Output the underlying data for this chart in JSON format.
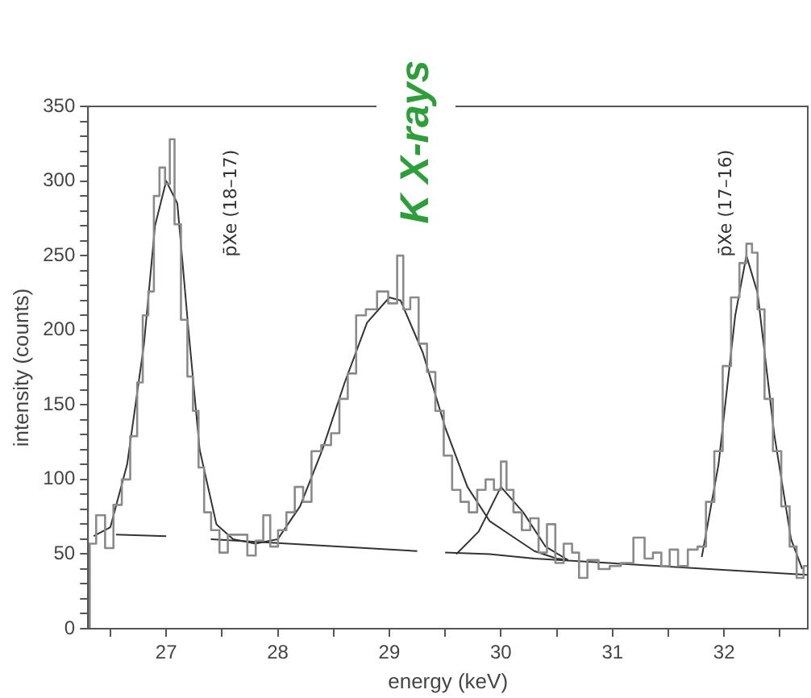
{
  "chart_data": {
    "type": "step",
    "title": "K X-rays",
    "xlabel": "energy (keV)",
    "ylabel": "intensity (counts)",
    "xlim": [
      26.3,
      32.75
    ],
    "ylim": [
      0,
      350
    ],
    "xticks": [
      {
        "value": 26.5,
        "label": null
      },
      27,
      {
        "value": 27.5,
        "label": null
      },
      28,
      {
        "value": 28.5,
        "label": null
      },
      29,
      {
        "value": 29.5,
        "label": null
      },
      30,
      {
        "value": 30.5,
        "label": null
      },
      31,
      {
        "value": 31.5,
        "label": null
      },
      32,
      {
        "value": 32.5,
        "label": null
      }
    ],
    "yticks": [
      0,
      {
        "value": 10,
        "label": null
      },
      {
        "value": 20,
        "label": null
      },
      {
        "value": 30,
        "label": null
      },
      {
        "value": 40,
        "label": null
      },
      50,
      {
        "value": 60,
        "label": null
      },
      {
        "value": 70,
        "label": null
      },
      {
        "value": 80,
        "label": null
      },
      {
        "value": 90,
        "label": null
      },
      100,
      {
        "value": 110,
        "label": null
      },
      {
        "value": 120,
        "label": null
      },
      {
        "value": 130,
        "label": null
      },
      {
        "value": 140,
        "label": null
      },
      150,
      {
        "value": 160,
        "label": null
      },
      {
        "value": 170,
        "label": null
      },
      {
        "value": 180,
        "label": null
      },
      {
        "value": 190,
        "label": null
      },
      200,
      {
        "value": 210,
        "label": null
      },
      {
        "value": 220,
        "label": null
      },
      {
        "value": 230,
        "label": null
      },
      {
        "value": 240,
        "label": null
      },
      250,
      {
        "value": 260,
        "label": null
      },
      {
        "value": 270,
        "label": null
      },
      {
        "value": 280,
        "label": null
      },
      {
        "value": 290,
        "label": null
      },
      300,
      {
        "value": 310,
        "label": null
      },
      {
        "value": 320,
        "label": null
      },
      {
        "value": 330,
        "label": null
      },
      {
        "value": 340,
        "label": null
      },
      350
    ],
    "grid": false,
    "marker": "none",
    "annotations": [
      "p̄Xe (18–17)",
      "p̄Xe (17–16)"
    ],
    "series": [
      {
        "color": "#8a8a8a",
        "x": [
          26.3,
          26.33,
          26.415,
          26.49,
          26.565,
          26.64,
          26.715,
          26.765,
          26.815,
          26.865,
          26.915,
          26.965,
          27.015,
          27.05,
          27.1,
          27.165,
          27.215,
          27.265,
          27.315,
          27.365,
          27.44,
          27.515,
          27.59,
          27.69,
          27.765,
          27.84,
          27.9,
          27.965,
          28.04,
          28.115,
          28.19,
          28.265,
          28.34,
          28.44,
          28.515,
          28.59,
          28.665,
          28.74,
          28.84,
          28.94,
          29.04,
          29.1,
          29.15,
          29.225,
          29.3,
          29.375,
          29.45,
          29.525,
          29.6,
          29.675,
          29.75,
          29.825,
          29.9,
          29.975,
          30.025,
          30.075,
          30.15,
          30.225,
          30.3,
          30.375,
          30.45,
          30.525,
          30.6,
          30.675,
          30.725,
          30.825,
          30.925,
          31.025,
          31.125,
          31.25,
          31.325,
          31.4,
          31.475,
          31.55,
          31.625,
          31.725,
          31.8,
          31.875,
          31.95,
          32.025,
          32.1,
          32.175,
          32.225,
          32.275,
          32.325,
          32.4,
          32.475,
          32.55,
          32.625,
          32.675,
          32.75
        ],
        "values": [
          0,
          57,
          76,
          54,
          83,
          100,
          129,
          165,
          210,
          226,
          290,
          309,
          298,
          328,
          271,
          207,
          169,
          146,
          108,
          78,
          66,
          51,
          63,
          63,
          49,
          59,
          76,
          55,
          66,
          78,
          95,
          85,
          119,
          123,
          131,
          154,
          171,
          210,
          214,
          226,
          218,
          250,
          214,
          222,
          191,
          172,
          146,
          116,
          93,
          85,
          78,
          93,
          100,
          93,
          112,
          93,
          78,
          66,
          74,
          51,
          70,
          44,
          57,
          51,
          34,
          46,
          40,
          42,
          44,
          61,
          47,
          51,
          42,
          53,
          42,
          53,
          55,
          85,
          119,
          176,
          222,
          245,
          258,
          252,
          214,
          154,
          119,
          82,
          55,
          34,
          42
        ]
      },
      {
        "type": "line",
        "color": "#333333",
        "x": [
          26.35,
          26.5,
          26.65,
          26.8,
          26.9,
          27.0,
          27.1,
          27.2,
          27.3,
          27.45,
          27.6,
          27.8,
          28.0,
          28.2,
          28.4,
          28.6,
          28.8,
          29.0,
          29.1,
          29.3,
          29.5,
          29.7,
          29.9,
          30.1,
          30.3,
          30.5,
          30.6,
          31.0,
          31.8,
          31.95,
          32.1,
          32.2,
          32.3,
          32.45,
          32.6,
          32.7
        ],
        "values": [
          62,
          68,
          110,
          190,
          270,
          300,
          285,
          200,
          120,
          70,
          60,
          57,
          60,
          82,
          120,
          165,
          205,
          222,
          220,
          185,
          135,
          95,
          72,
          62,
          52,
          47,
          46,
          null,
          48,
          110,
          210,
          250,
          225,
          130,
          60,
          40
        ]
      },
      {
        "type": "line",
        "color": "#333333",
        "x": [
          29.6,
          29.8,
          30.0,
          30.2,
          30.4,
          30.6
        ],
        "values": [
          50,
          65,
          95,
          78,
          55,
          46
        ]
      },
      {
        "type": "line",
        "color": "#333333",
        "x": [
          26.55,
          27.0,
          27.15,
          27.4,
          29.25,
          29.35,
          29.5,
          29.9,
          30.3,
          32.75
        ],
        "values": [
          63,
          62,
          null,
          60,
          52,
          null,
          51,
          50,
          47,
          36
        ]
      }
    ]
  }
}
